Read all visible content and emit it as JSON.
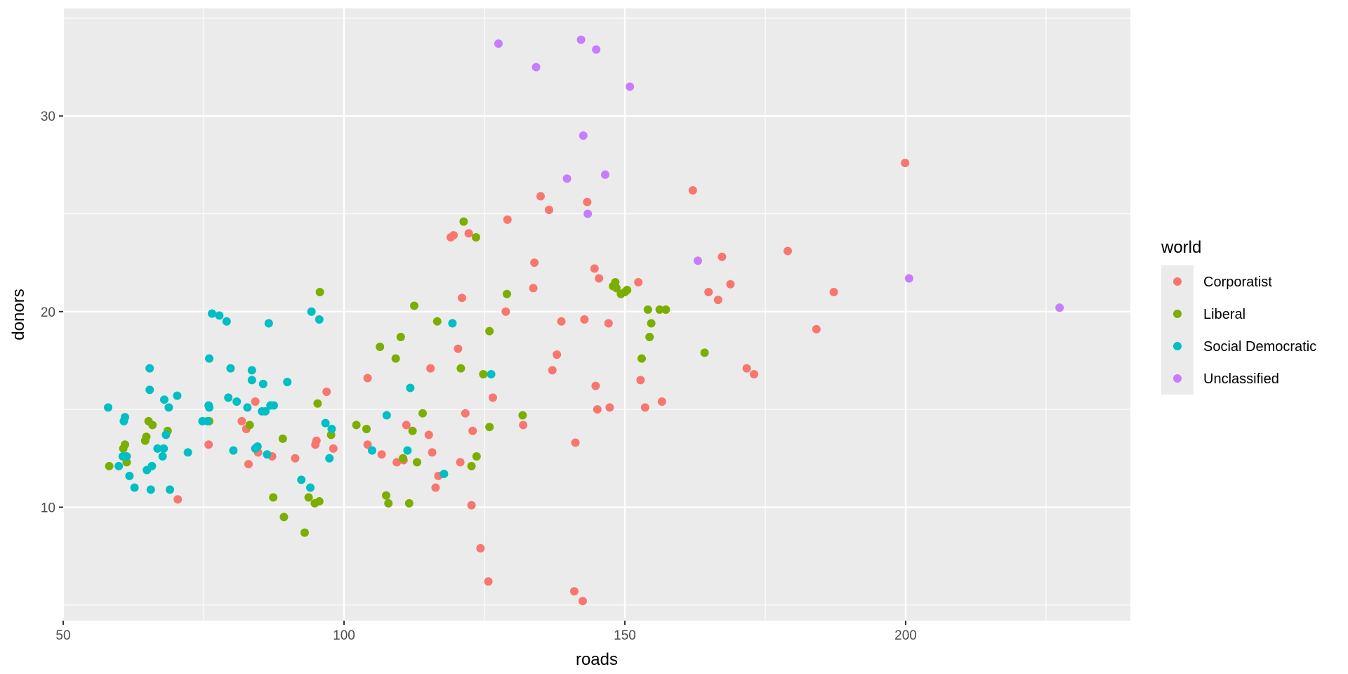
{
  "chart_data": {
    "type": "scatter",
    "xlabel": "roads",
    "ylabel": "donors",
    "xlim": [
      50,
      240
    ],
    "ylim": [
      4.2,
      35.5
    ],
    "x_ticks": [
      50,
      100,
      150,
      200
    ],
    "y_ticks": [
      10,
      20,
      30
    ],
    "x_tick_labels": [
      "50",
      "100",
      "150",
      "200"
    ],
    "y_tick_labels": [
      "10",
      "20",
      "30"
    ],
    "grid": true,
    "legend": {
      "title": "world",
      "position": "right"
    },
    "series": [
      {
        "name": "Corporatist",
        "color": "#F8766D",
        "points": [
          [
            70.4,
            10.4
          ],
          [
            75.9,
            13.2
          ],
          [
            81.8,
            14.4
          ],
          [
            82.6,
            14.0
          ],
          [
            83.0,
            12.2
          ],
          [
            84.2,
            15.4
          ],
          [
            84.7,
            12.8
          ],
          [
            87.2,
            12.6
          ],
          [
            91.3,
            12.5
          ],
          [
            94.9,
            13.2
          ],
          [
            95.1,
            13.4
          ],
          [
            96.9,
            15.9
          ],
          [
            98.1,
            13.0
          ],
          [
            104.2,
            16.6
          ],
          [
            104.2,
            13.2
          ],
          [
            106.7,
            12.7
          ],
          [
            109.4,
            12.3
          ],
          [
            110.6,
            12.4
          ],
          [
            111.1,
            14.2
          ],
          [
            115.1,
            13.7
          ],
          [
            115.4,
            17.1
          ],
          [
            115.7,
            12.8
          ],
          [
            116.3,
            11.0
          ],
          [
            116.8,
            11.6
          ],
          [
            119.0,
            23.8
          ],
          [
            119.5,
            23.9
          ],
          [
            120.3,
            18.1
          ],
          [
            120.7,
            12.3
          ],
          [
            121.0,
            20.7
          ],
          [
            121.6,
            14.8
          ],
          [
            122.2,
            24.0
          ],
          [
            122.7,
            10.1
          ],
          [
            122.9,
            13.9
          ],
          [
            124.3,
            7.9
          ],
          [
            125.7,
            6.2
          ],
          [
            126.5,
            15.6
          ],
          [
            128.8,
            20.0
          ],
          [
            129.1,
            24.7
          ],
          [
            131.9,
            14.2
          ],
          [
            133.7,
            21.2
          ],
          [
            133.9,
            22.5
          ],
          [
            135.0,
            25.9
          ],
          [
            136.5,
            25.2
          ],
          [
            137.1,
            17.0
          ],
          [
            137.9,
            17.8
          ],
          [
            138.7,
            19.5
          ],
          [
            141.0,
            5.7
          ],
          [
            141.2,
            13.3
          ],
          [
            142.5,
            5.2
          ],
          [
            142.8,
            19.6
          ],
          [
            143.3,
            25.6
          ],
          [
            144.6,
            22.2
          ],
          [
            144.8,
            16.2
          ],
          [
            145.1,
            15.0
          ],
          [
            145.4,
            21.7
          ],
          [
            147.1,
            19.4
          ],
          [
            147.3,
            15.1
          ],
          [
            152.4,
            21.5
          ],
          [
            152.8,
            16.5
          ],
          [
            153.6,
            15.1
          ],
          [
            156.6,
            15.4
          ],
          [
            162.1,
            26.2
          ],
          [
            164.9,
            21.0
          ],
          [
            166.6,
            20.6
          ],
          [
            167.3,
            22.8
          ],
          [
            168.8,
            21.4
          ],
          [
            171.7,
            17.1
          ],
          [
            173.0,
            16.8
          ],
          [
            179.0,
            23.1
          ],
          [
            184.1,
            19.1
          ],
          [
            187.2,
            21.0
          ],
          [
            199.9,
            27.6
          ]
        ]
      },
      {
        "name": "Liberal",
        "color": "#7CAE00",
        "points": [
          [
            58.2,
            12.1
          ],
          [
            60.7,
            13.0
          ],
          [
            61.0,
            13.2
          ],
          [
            61.3,
            12.3
          ],
          [
            64.6,
            13.4
          ],
          [
            64.8,
            13.6
          ],
          [
            65.2,
            14.4
          ],
          [
            65.9,
            14.2
          ],
          [
            68.6,
            13.9
          ],
          [
            76.0,
            14.4
          ],
          [
            83.2,
            14.2
          ],
          [
            89.1,
            13.5
          ],
          [
            87.4,
            10.5
          ],
          [
            89.3,
            9.5
          ],
          [
            93.0,
            8.7
          ],
          [
            93.7,
            10.5
          ],
          [
            94.8,
            10.2
          ],
          [
            95.3,
            15.3
          ],
          [
            95.6,
            10.3
          ],
          [
            95.7,
            21.0
          ],
          [
            97.7,
            13.7
          ],
          [
            102.2,
            14.2
          ],
          [
            104.0,
            14.0
          ],
          [
            106.4,
            18.2
          ],
          [
            107.5,
            10.6
          ],
          [
            107.9,
            10.2
          ],
          [
            109.2,
            17.6
          ],
          [
            110.1,
            18.7
          ],
          [
            110.5,
            12.5
          ],
          [
            111.6,
            10.2
          ],
          [
            112.2,
            13.9
          ],
          [
            112.5,
            20.3
          ],
          [
            113.0,
            12.3
          ],
          [
            114.0,
            14.8
          ],
          [
            116.6,
            19.5
          ],
          [
            120.8,
            17.1
          ],
          [
            121.3,
            24.6
          ],
          [
            122.7,
            12.1
          ],
          [
            123.5,
            23.8
          ],
          [
            123.6,
            12.6
          ],
          [
            124.8,
            16.8
          ],
          [
            125.9,
            14.1
          ],
          [
            125.9,
            19.0
          ],
          [
            129.0,
            20.9
          ],
          [
            131.8,
            14.7
          ],
          [
            147.9,
            21.3
          ],
          [
            148.3,
            21.5
          ],
          [
            148.5,
            21.2
          ],
          [
            149.3,
            20.9
          ],
          [
            150.0,
            21.0
          ],
          [
            150.4,
            21.1
          ],
          [
            153.0,
            17.6
          ],
          [
            154.1,
            20.1
          ],
          [
            154.4,
            18.7
          ],
          [
            154.7,
            19.4
          ],
          [
            156.2,
            20.1
          ],
          [
            157.3,
            20.1
          ],
          [
            164.2,
            17.9
          ]
        ]
      },
      {
        "name": "Social Democratic",
        "color": "#00BFC4",
        "points": [
          [
            58.0,
            15.1
          ],
          [
            59.9,
            12.1
          ],
          [
            60.6,
            12.6
          ],
          [
            61.0,
            14.6
          ],
          [
            60.8,
            14.4
          ],
          [
            61.3,
            12.6
          ],
          [
            61.8,
            11.6
          ],
          [
            62.7,
            11.0
          ],
          [
            64.9,
            11.9
          ],
          [
            65.4,
            17.1
          ],
          [
            65.4,
            16.0
          ],
          [
            65.6,
            10.9
          ],
          [
            65.8,
            12.1
          ],
          [
            66.8,
            13.0
          ],
          [
            67.7,
            12.6
          ],
          [
            67.9,
            13.0
          ],
          [
            68.0,
            15.5
          ],
          [
            68.3,
            13.7
          ],
          [
            68.8,
            15.1
          ],
          [
            69.0,
            10.9
          ],
          [
            70.3,
            15.7
          ],
          [
            72.2,
            12.8
          ],
          [
            74.8,
            14.4
          ],
          [
            75.7,
            14.4
          ],
          [
            75.9,
            15.2
          ],
          [
            76.0,
            15.1
          ],
          [
            76.0,
            17.6
          ],
          [
            76.5,
            19.9
          ],
          [
            77.8,
            19.8
          ],
          [
            79.1,
            19.5
          ],
          [
            79.4,
            15.6
          ],
          [
            79.8,
            17.1
          ],
          [
            80.3,
            12.9
          ],
          [
            80.9,
            15.4
          ],
          [
            82.8,
            15.1
          ],
          [
            83.6,
            17.0
          ],
          [
            83.6,
            16.5
          ],
          [
            84.2,
            13.0
          ],
          [
            84.6,
            13.1
          ],
          [
            85.4,
            14.9
          ],
          [
            85.6,
            16.3
          ],
          [
            86.0,
            14.9
          ],
          [
            86.3,
            12.7
          ],
          [
            86.6,
            19.4
          ],
          [
            86.9,
            15.2
          ],
          [
            87.5,
            15.2
          ],
          [
            89.9,
            16.4
          ],
          [
            92.4,
            11.4
          ],
          [
            94.0,
            11.0
          ],
          [
            94.2,
            20.0
          ],
          [
            95.6,
            19.6
          ],
          [
            96.7,
            14.3
          ],
          [
            97.4,
            12.5
          ],
          [
            97.8,
            14.0
          ],
          [
            105.0,
            12.9
          ],
          [
            107.6,
            14.7
          ],
          [
            111.3,
            12.9
          ],
          [
            111.8,
            16.1
          ],
          [
            117.8,
            11.7
          ],
          [
            119.3,
            19.4
          ],
          [
            126.2,
            16.8
          ]
        ]
      },
      {
        "name": "Unclassified",
        "color": "#C77CFF",
        "points": [
          [
            127.5,
            33.7
          ],
          [
            134.2,
            32.5
          ],
          [
            139.7,
            26.8
          ],
          [
            142.2,
            33.9
          ],
          [
            142.6,
            29.0
          ],
          [
            143.4,
            25.0
          ],
          [
            144.9,
            33.4
          ],
          [
            146.5,
            27.0
          ],
          [
            150.9,
            31.5
          ],
          [
            163.0,
            22.6
          ],
          [
            200.6,
            21.7
          ],
          [
            227.4,
            20.2
          ]
        ]
      }
    ]
  }
}
